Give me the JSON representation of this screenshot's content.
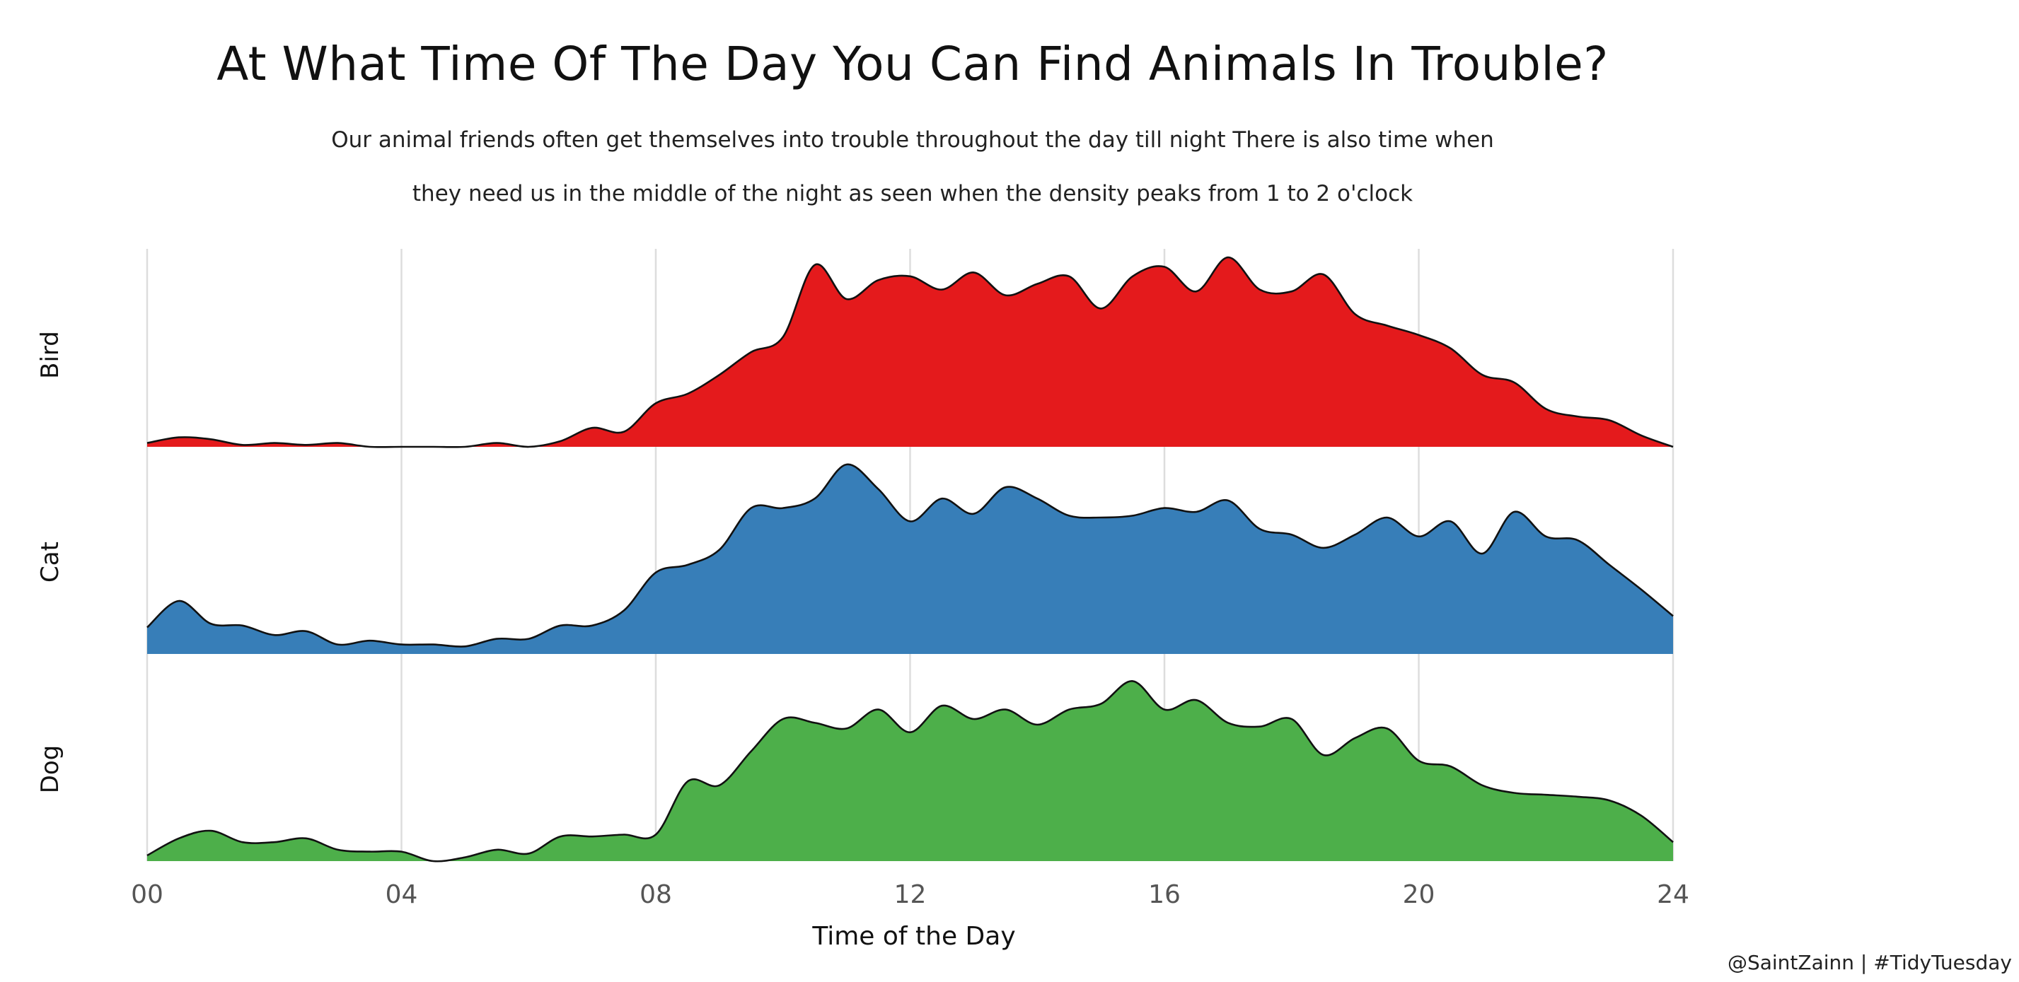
{
  "title": "At What Time Of The Day You Can Find Animals In Trouble?",
  "subtitle": [
    "Our animal friends often get themselves into trouble throughout the day till night There is also time when",
    "they need us in the middle of the night as seen when the density peaks from 1 to 2 o'clock"
  ],
  "caption": "@SaintZainn | #TidyTuesday",
  "chart_data": {
    "type": "area",
    "subtype": "ridgeline-density",
    "xlabel": "Time of the Day",
    "ylabel": "",
    "xlim": [
      0,
      24
    ],
    "x_ticks": [
      0,
      4,
      8,
      12,
      16,
      20,
      24
    ],
    "x_tick_labels": [
      "00",
      "04",
      "08",
      "12",
      "16",
      "20",
      "24"
    ],
    "grid": "vertical",
    "legend": "none",
    "x": [
      0,
      0.5,
      1,
      1.5,
      2,
      2.5,
      3,
      3.5,
      4,
      4.5,
      5,
      5.5,
      6,
      6.5,
      7,
      7.5,
      8,
      8.5,
      9,
      9.5,
      10,
      10.5,
      11,
      11.5,
      12,
      12.5,
      13,
      13.5,
      14,
      14.5,
      15,
      15.5,
      16,
      16.5,
      17,
      17.5,
      18,
      18.5,
      19,
      19.5,
      20,
      20.5,
      21,
      21.5,
      22,
      22.5,
      23,
      23.5,
      24
    ],
    "series": [
      {
        "name": "Bird",
        "color": "#e41a1c",
        "values": [
          0.02,
          0.05,
          0.04,
          0.01,
          0.02,
          0.01,
          0.02,
          0.0,
          0.0,
          0.0,
          0.0,
          0.02,
          0.0,
          0.03,
          0.1,
          0.08,
          0.23,
          0.28,
          0.38,
          0.5,
          0.58,
          0.96,
          0.78,
          0.88,
          0.9,
          0.83,
          0.92,
          0.8,
          0.86,
          0.9,
          0.73,
          0.9,
          0.95,
          0.82,
          1.0,
          0.83,
          0.82,
          0.91,
          0.7,
          0.64,
          0.59,
          0.52,
          0.38,
          0.34,
          0.2,
          0.16,
          0.14,
          0.06,
          0.0
        ]
      },
      {
        "name": "Cat",
        "color": "#377eb8",
        "values": [
          0.14,
          0.28,
          0.16,
          0.15,
          0.1,
          0.12,
          0.05,
          0.07,
          0.05,
          0.05,
          0.04,
          0.08,
          0.08,
          0.15,
          0.15,
          0.23,
          0.43,
          0.47,
          0.55,
          0.77,
          0.77,
          0.82,
          1.0,
          0.87,
          0.7,
          0.82,
          0.74,
          0.88,
          0.82,
          0.73,
          0.72,
          0.73,
          0.77,
          0.75,
          0.81,
          0.66,
          0.63,
          0.56,
          0.63,
          0.72,
          0.62,
          0.7,
          0.53,
          0.75,
          0.62,
          0.6,
          0.47,
          0.34,
          0.2
        ]
      },
      {
        "name": "Dog",
        "color": "#4daf4a",
        "values": [
          0.03,
          0.12,
          0.16,
          0.1,
          0.1,
          0.12,
          0.06,
          0.05,
          0.05,
          0.0,
          0.02,
          0.06,
          0.04,
          0.13,
          0.13,
          0.14,
          0.14,
          0.42,
          0.4,
          0.58,
          0.75,
          0.73,
          0.7,
          0.8,
          0.68,
          0.82,
          0.75,
          0.8,
          0.72,
          0.8,
          0.83,
          0.95,
          0.8,
          0.85,
          0.73,
          0.71,
          0.75,
          0.56,
          0.65,
          0.7,
          0.53,
          0.5,
          0.4,
          0.36,
          0.35,
          0.34,
          0.32,
          0.24,
          0.1
        ]
      }
    ]
  }
}
